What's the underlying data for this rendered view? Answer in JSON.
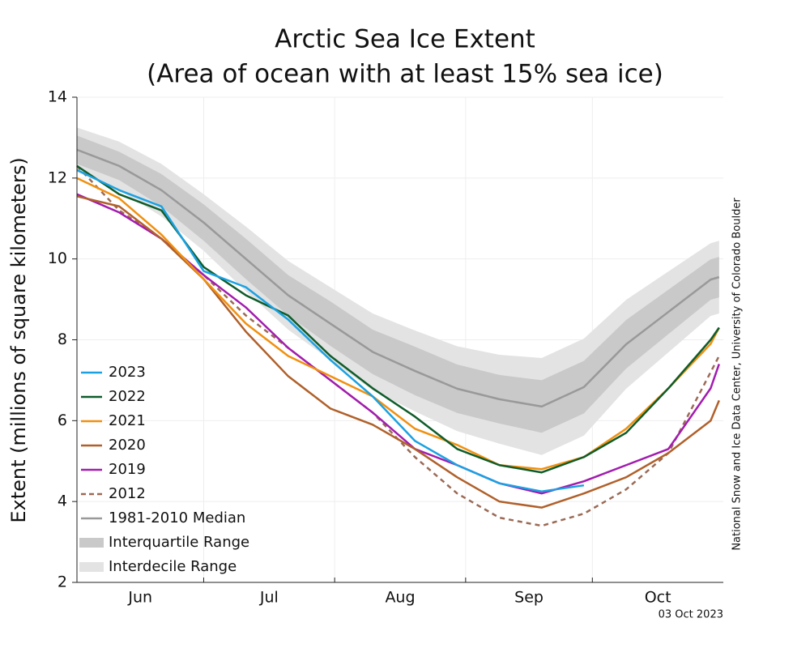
{
  "chart_data": {
    "type": "line",
    "title": "Arctic Sea Ice Extent",
    "subtitle": "(Area of ocean with at least 15% sea ice)",
    "y_label": "Extent (millions of square kilometers)",
    "source": "National Snow and Ice Data Center, University of Colorado Boulder",
    "date": "03 Oct 2023",
    "x": [
      0,
      10,
      20,
      30,
      40,
      50,
      60,
      70,
      80,
      90,
      100,
      110,
      120,
      130,
      140,
      150,
      152
    ],
    "xlim": [
      0,
      153
    ],
    "xticks": [
      {
        "value": 0,
        "label": "Jun"
      },
      {
        "value": 30,
        "label": "Jul"
      },
      {
        "value": 61,
        "label": "Aug"
      },
      {
        "value": 92,
        "label": "Sep"
      },
      {
        "value": 122,
        "label": "Oct"
      }
    ],
    "ylim": [
      2,
      14
    ],
    "yticks": [
      2,
      4,
      6,
      8,
      10,
      12,
      14
    ],
    "grid": true,
    "bands": [
      {
        "name": "Interdecile Range",
        "color": "#e3e3e3",
        "upper": [
          13.25,
          12.9,
          12.35,
          11.6,
          10.8,
          9.95,
          9.3,
          8.65,
          8.23,
          7.84,
          7.63,
          7.55,
          8.03,
          8.99,
          9.69,
          10.39,
          10.45
        ],
        "lower": [
          12.15,
          11.7,
          11.05,
          10.2,
          9.2,
          8.25,
          7.5,
          6.75,
          6.23,
          5.74,
          5.43,
          5.15,
          5.63,
          6.79,
          7.69,
          8.59,
          8.65
        ]
      },
      {
        "name": "Interquartile Range",
        "color": "#c9c9c9",
        "upper": [
          13.05,
          12.65,
          12.1,
          11.35,
          10.5,
          9.6,
          8.95,
          8.25,
          7.83,
          7.39,
          7.13,
          7.0,
          7.48,
          8.49,
          9.24,
          9.99,
          10.05
        ],
        "lower": [
          12.35,
          11.95,
          11.3,
          10.45,
          9.5,
          8.6,
          7.85,
          7.15,
          6.63,
          6.19,
          5.93,
          5.7,
          6.18,
          7.29,
          8.14,
          8.99,
          9.05
        ]
      }
    ],
    "series": [
      {
        "name": "1981-2010 Median",
        "color": "#999999",
        "values": [
          12.7,
          12.3,
          11.7,
          10.9,
          10.0,
          9.1,
          8.4,
          7.7,
          7.23,
          6.79,
          6.53,
          6.35,
          6.83,
          7.89,
          8.69,
          9.49,
          9.55
        ]
      },
      {
        "name": "2012",
        "color": "#9b6a55",
        "dashed": true,
        "values": [
          12.3,
          11.2,
          10.5,
          9.6,
          8.6,
          7.8,
          7.0,
          6.2,
          5.1,
          4.2,
          3.6,
          3.4,
          3.7,
          4.3,
          5.2,
          7.2,
          7.6
        ]
      },
      {
        "name": "2019",
        "color": "#a21caf",
        "values": [
          11.6,
          11.15,
          10.5,
          9.6,
          8.8,
          7.8,
          7.0,
          6.2,
          5.3,
          4.9,
          4.45,
          4.2,
          4.5,
          4.9,
          5.3,
          6.8,
          7.4
        ]
      },
      {
        "name": "2020",
        "color": "#b0602a",
        "values": [
          11.55,
          11.3,
          10.5,
          9.5,
          8.2,
          7.1,
          6.3,
          5.9,
          5.3,
          4.6,
          4.0,
          3.85,
          4.2,
          4.6,
          5.2,
          6.0,
          6.5
        ]
      },
      {
        "name": "2021",
        "color": "#f0900f",
        "values": [
          12.0,
          11.5,
          10.6,
          9.5,
          8.4,
          7.6,
          7.1,
          6.6,
          5.8,
          5.4,
          4.9,
          4.8,
          5.1,
          5.8,
          6.8,
          7.9,
          8.3
        ]
      },
      {
        "name": "2022",
        "color": "#0f5c2a",
        "values": [
          12.3,
          11.6,
          11.2,
          9.8,
          9.1,
          8.6,
          7.6,
          6.8,
          6.1,
          5.3,
          4.9,
          4.72,
          5.1,
          5.7,
          6.8,
          8.0,
          8.3
        ]
      },
      {
        "name": "2023",
        "color": "#1ba1e2",
        "values": [
          12.2,
          11.7,
          11.3,
          9.7,
          9.3,
          8.5,
          7.5,
          6.6,
          5.5,
          4.9,
          4.45,
          4.25,
          4.4,
          null,
          null,
          null,
          null
        ]
      }
    ],
    "legend_order": [
      "2023",
      "2022",
      "2021",
      "2020",
      "2019",
      "2012",
      "1981-2010 Median",
      "Interquartile Range",
      "Interdecile Range"
    ]
  }
}
